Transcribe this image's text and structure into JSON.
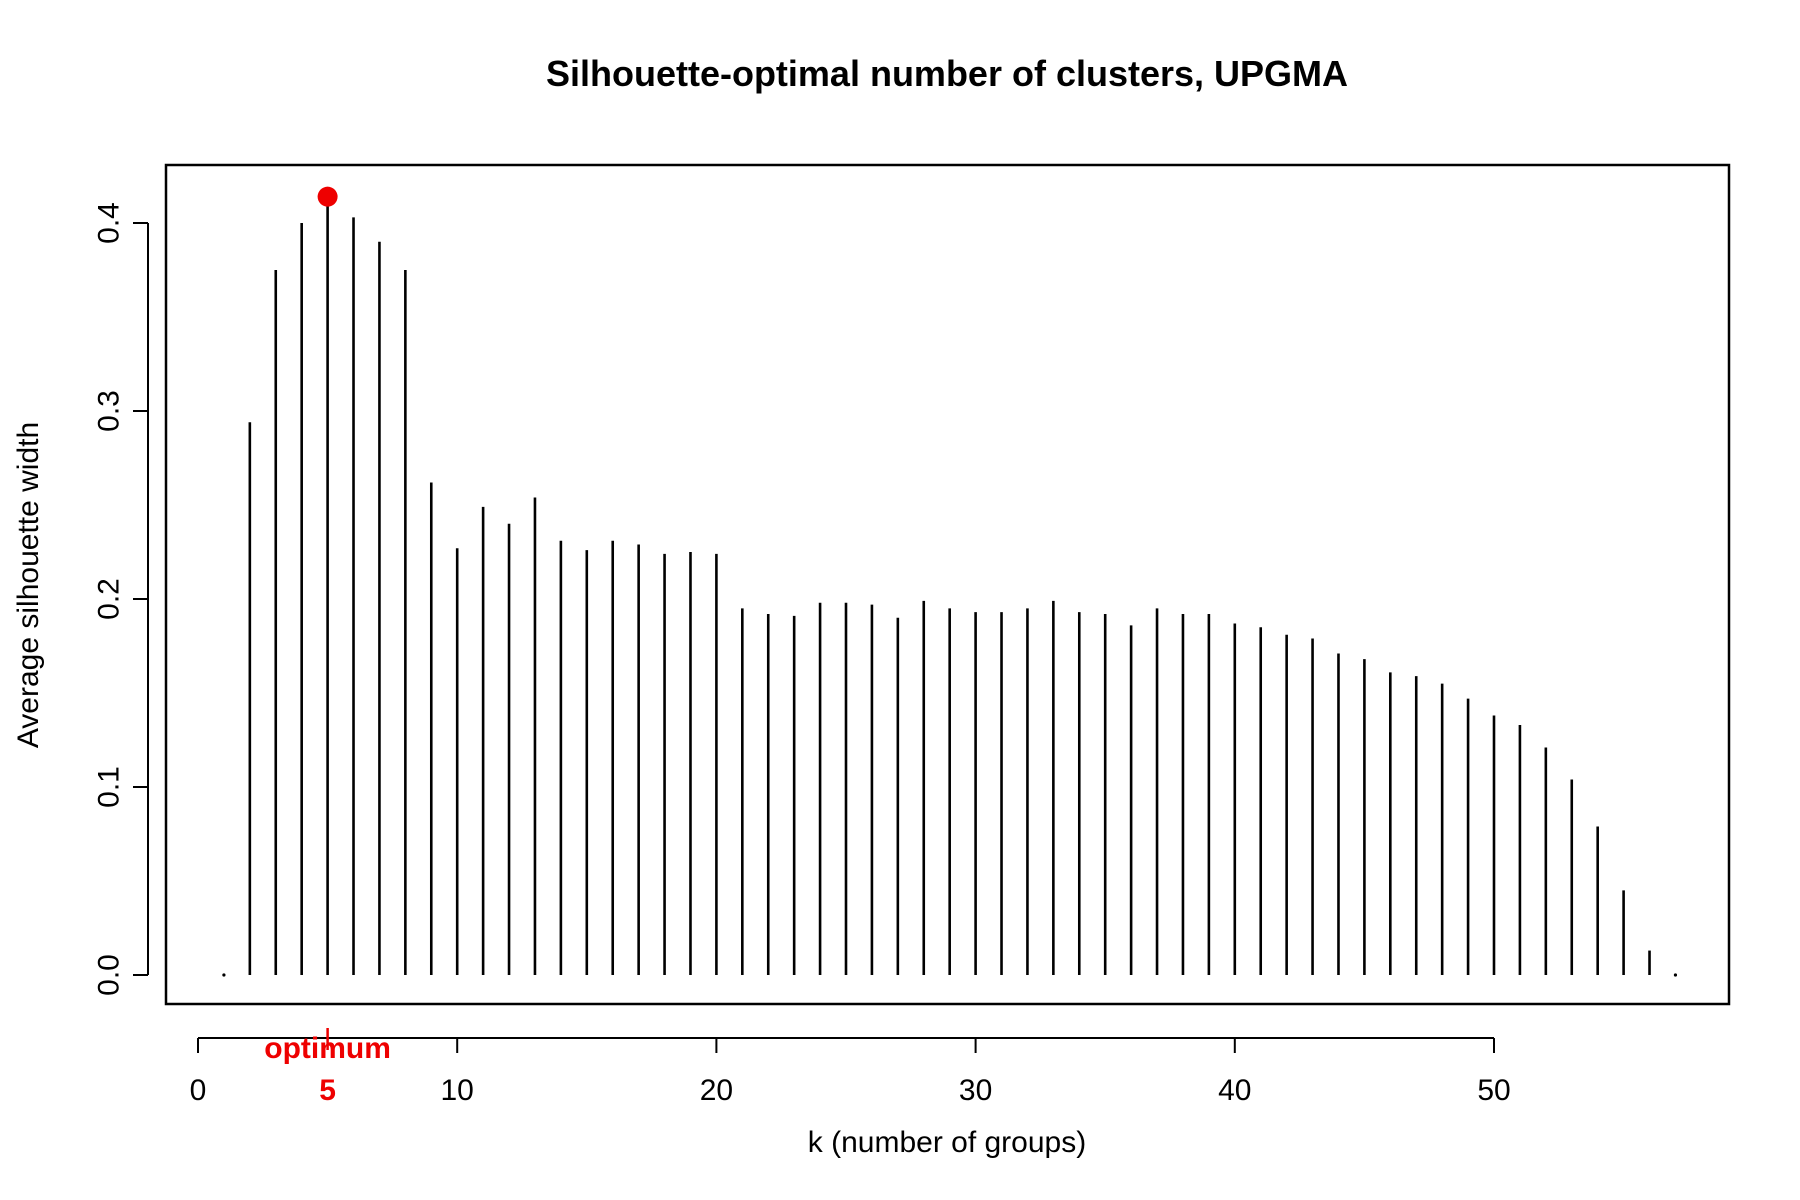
{
  "chart_data": {
    "type": "bar",
    "style": "vertical-lines",
    "title": "Silhouette-optimal number of clusters, UPGMA",
    "xlabel": "k (number of groups)",
    "ylabel": "Average silhouette width",
    "xlim": [
      0,
      57
    ],
    "ylim": [
      0,
      0.42
    ],
    "x_ticks": [
      0,
      10,
      20,
      30,
      40,
      50
    ],
    "y_ticks": [
      "0.0",
      "0.1",
      "0.2",
      "0.3",
      "0.4"
    ],
    "x": [
      1,
      2,
      3,
      4,
      5,
      6,
      7,
      8,
      9,
      10,
      11,
      12,
      13,
      14,
      15,
      16,
      17,
      18,
      19,
      20,
      21,
      22,
      23,
      24,
      25,
      26,
      27,
      28,
      29,
      30,
      31,
      32,
      33,
      34,
      35,
      36,
      37,
      38,
      39,
      40,
      41,
      42,
      43,
      44,
      45,
      46,
      47,
      48,
      49,
      50,
      51,
      52,
      53,
      54,
      55,
      56,
      57
    ],
    "values": [
      0.0,
      0.294,
      0.375,
      0.4,
      0.414,
      0.403,
      0.39,
      0.375,
      0.262,
      0.227,
      0.249,
      0.24,
      0.254,
      0.231,
      0.226,
      0.231,
      0.229,
      0.224,
      0.225,
      0.224,
      0.195,
      0.192,
      0.191,
      0.198,
      0.198,
      0.197,
      0.19,
      0.199,
      0.195,
      0.193,
      0.193,
      0.195,
      0.199,
      0.193,
      0.192,
      0.186,
      0.195,
      0.192,
      0.192,
      0.187,
      0.185,
      0.181,
      0.179,
      0.171,
      0.168,
      0.161,
      0.159,
      0.155,
      0.147,
      0.138,
      0.133,
      0.121,
      0.104,
      0.079,
      0.045,
      0.013,
      0.0
    ],
    "optimum": {
      "k": 5,
      "value": 0.414,
      "label": "optimum",
      "tick_label": "5",
      "color": "#ee0000"
    },
    "line_color": "#000000",
    "grid": false,
    "legend": "none"
  }
}
